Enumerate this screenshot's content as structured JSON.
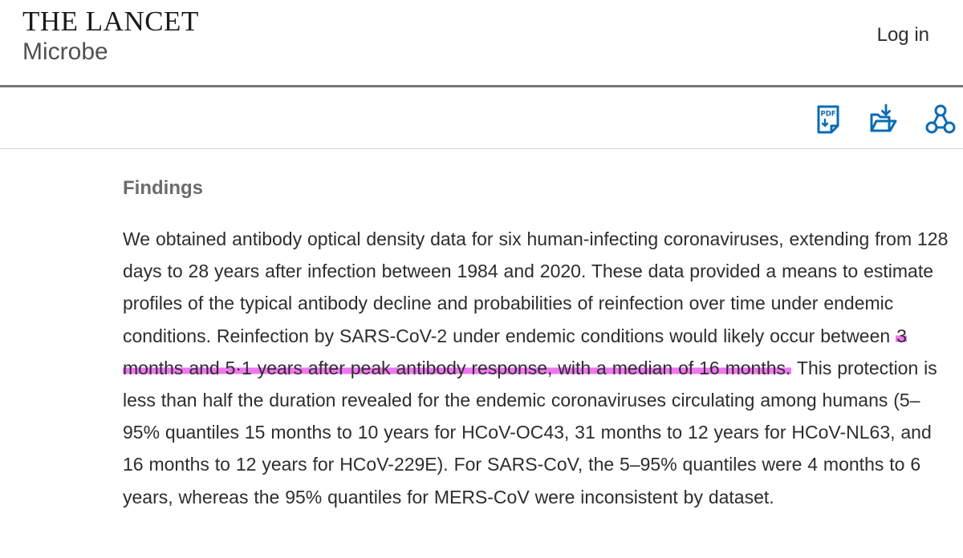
{
  "header": {
    "journal_line1": "THE LANCET",
    "journal_line2": "Microbe",
    "login_label": "Log in"
  },
  "toolbar": {
    "icons": [
      "pdf-icon",
      "download-folder-icon",
      "share-network-icon"
    ],
    "accent_color": "#0a6bb5"
  },
  "article": {
    "section_heading": "Findings",
    "text_before": "We obtained antibody optical density data for six human-infecting coronaviruses, extending from 128 days to 28 years after infection between 1984 and 2020. These data provided a means to estimate profiles of the typical antibody decline and probabilities of reinfection over time under endemic conditions. Reinfection by SARS-CoV-2 under endemic conditions would likely occur between ",
    "text_highlighted": "3 months and 5·1 years after peak antibody response, with a median of 16 months.",
    "text_after": " This protection is less than half the duration revealed for the endemic coronaviruses circulating among humans (5–95% quantiles 15 months to 10 years for HCoV-OC43, 31 months to 12 years for HCoV-NL63, and 16 months to 12 years for HCoV-229E). For SARS-CoV, the 5–95% quantiles were 4 months to 6 years, whereas the 95% quantiles for MERS-CoV were inconsistent by dataset.",
    "highlight_color": "#ee79ef"
  }
}
